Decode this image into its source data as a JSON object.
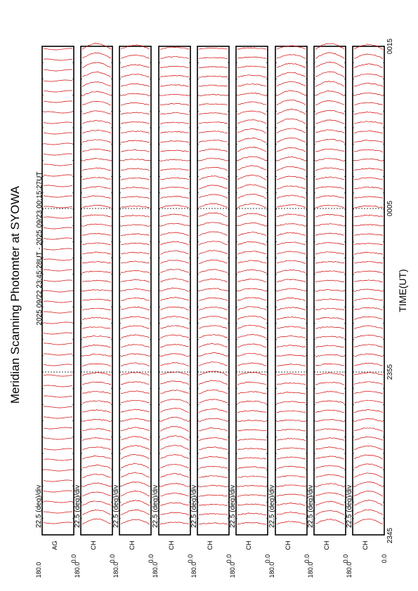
{
  "chart_data": {
    "type": "line",
    "title": "Meridian Scanning Photomter at SYOWA",
    "subtitle": "2025 09/22 23:45:28UT - 2025 09/23 00:15:27UT",
    "xlabel": "TIME(UT)",
    "x_ticks": [
      "2345",
      "2355",
      "0005",
      "0015"
    ],
    "y_scale_label": "22.5 (deg)/div",
    "y_range": [
      "0.0",
      "180.0"
    ],
    "panels": [
      {
        "channel": "AG"
      },
      {
        "channel": "CH"
      },
      {
        "channel": "CH"
      },
      {
        "channel": "CH"
      },
      {
        "channel": "CH"
      },
      {
        "channel": "CH"
      },
      {
        "channel": "CH"
      },
      {
        "channel": "CH"
      },
      {
        "channel": "CH"
      }
    ],
    "trace_color": "#d40000",
    "grid": false
  }
}
